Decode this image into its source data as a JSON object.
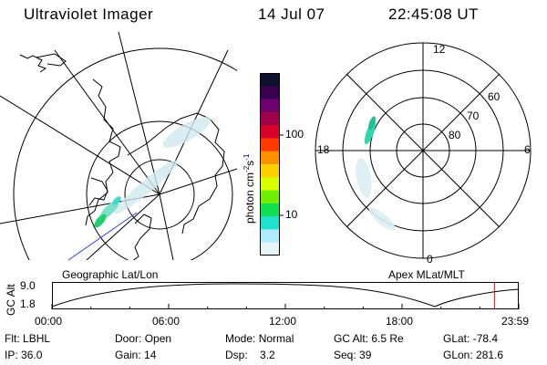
{
  "header": {
    "instrument": "Ultraviolet Imager",
    "date": "14 Jul 07",
    "time": "22:45:08 UT"
  },
  "colorbar": {
    "label": "photon cm^-2 s^-1",
    "label_main": "photon cm",
    "label_exp1": "-2",
    "label_mid": "s",
    "label_exp2": "-1",
    "ticks": [
      "100",
      "10"
    ],
    "colors": [
      "#101030",
      "#3a0050",
      "#700070",
      "#a0004a",
      "#d8002a",
      "#ff3a00",
      "#ff9000",
      "#ffd000",
      "#d8ff00",
      "#70f000",
      "#10e050",
      "#20e0d0",
      "#b0eaff",
      "#e8f4f8"
    ]
  },
  "left_map": {
    "label": "Geographic Lat/Lon"
  },
  "right_map": {
    "label": "Apex MLat/MLT",
    "mlt_labels": {
      "top": "12",
      "left": "18",
      "right": "6",
      "bottom": "0"
    },
    "lat_labels": [
      "60",
      "70",
      "80"
    ]
  },
  "timeline": {
    "ylabel": "GC Alt",
    "ymax": "9.0",
    "ymin": "1.8",
    "ticks": [
      "00:00",
      "06:00",
      "12:00",
      "18:00",
      "23:59"
    ],
    "marker_hour": 22.75,
    "marker_color": "#e00000"
  },
  "info": {
    "flt": {
      "label": "Flt:",
      "value": "LBHL"
    },
    "ip": {
      "label": "IP:",
      "value": "36.0"
    },
    "door": {
      "label": "Door:",
      "value": "Open"
    },
    "gain": {
      "label": "Gain:",
      "value": "14"
    },
    "mode": {
      "label": "Mode:",
      "value": "Normal"
    },
    "dsp": {
      "label": "Dsp:",
      "value": "3.2"
    },
    "gcalt": {
      "label": "GC Alt:",
      "value": "6.5 Re"
    },
    "seq": {
      "label": "Seq:",
      "value": "39"
    },
    "glat": {
      "label": "GLat:",
      "value": "-78.4"
    },
    "glon": {
      "label": "GLon:",
      "value": "281.6"
    }
  }
}
